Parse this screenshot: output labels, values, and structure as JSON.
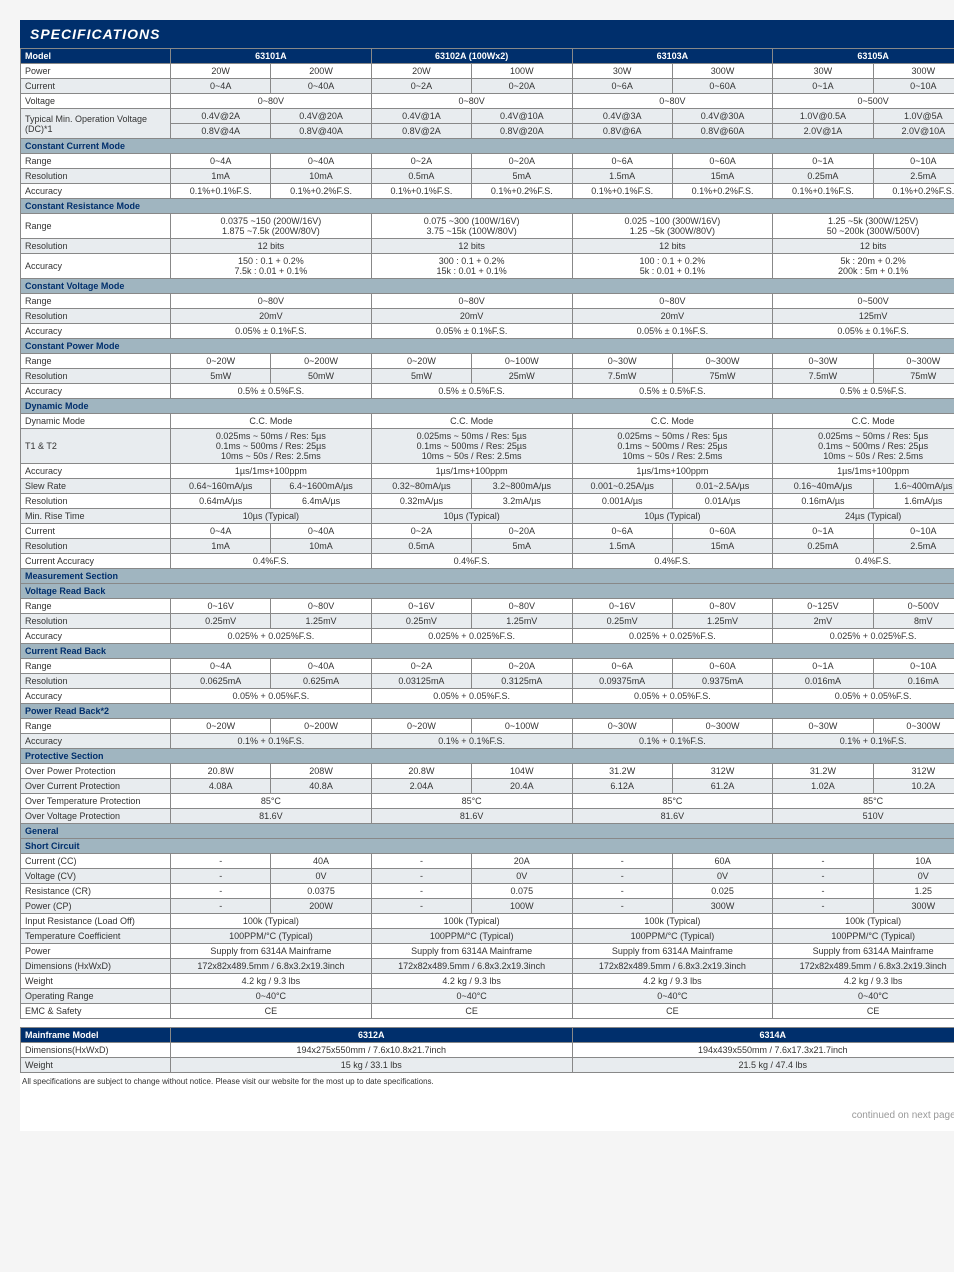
{
  "title": "SPECIFICATIONS",
  "columns": {
    "first_width": 150
  },
  "header": [
    "Model",
    "63101A",
    "63102A (100Wx2)",
    "63103A",
    "63105A"
  ],
  "rows": [
    {
      "type": "data",
      "label": "Power",
      "cells": [
        "20W",
        "200W",
        "20W",
        "100W",
        "30W",
        "300W",
        "30W",
        "300W"
      ]
    },
    {
      "type": "data",
      "label": "Current",
      "cells": [
        "0~4A",
        "0~40A",
        "0~2A",
        "0~20A",
        "0~6A",
        "0~60A",
        "0~1A",
        "0~10A"
      ]
    },
    {
      "type": "data",
      "label": "Voltage",
      "cells": [
        {
          "span": 2,
          "text": "0~80V"
        },
        {
          "span": 2,
          "text": "0~80V"
        },
        {
          "span": 2,
          "text": "0~80V"
        },
        {
          "span": 2,
          "text": "0~500V"
        }
      ]
    },
    {
      "type": "data",
      "label": "Typical Min. Operation Voltage (DC)*1",
      "multi": [
        [
          "0.4V@2A",
          "0.4V@20A",
          "0.4V@1A",
          "0.4V@10A",
          "0.4V@3A",
          "0.4V@30A",
          "1.0V@0.5A",
          "1.0V@5A"
        ],
        [
          "0.8V@4A",
          "0.8V@40A",
          "0.8V@2A",
          "0.8V@20A",
          "0.8V@6A",
          "0.8V@60A",
          "2.0V@1A",
          "2.0V@10A"
        ]
      ]
    },
    {
      "type": "section",
      "label": "Constant Current Mode"
    },
    {
      "type": "data",
      "label": "Range",
      "cells": [
        "0~4A",
        "0~40A",
        "0~2A",
        "0~20A",
        "0~6A",
        "0~60A",
        "0~1A",
        "0~10A"
      ]
    },
    {
      "type": "data",
      "label": "Resolution",
      "cells": [
        "1mA",
        "10mA",
        "0.5mA",
        "5mA",
        "1.5mA",
        "15mA",
        "0.25mA",
        "2.5mA"
      ]
    },
    {
      "type": "data",
      "label": "Accuracy",
      "cells": [
        "0.1%+0.1%F.S.",
        "0.1%+0.2%F.S.",
        "0.1%+0.1%F.S.",
        "0.1%+0.2%F.S.",
        "0.1%+0.1%F.S.",
        "0.1%+0.2%F.S.",
        "0.1%+0.1%F.S.",
        "0.1%+0.2%F.S."
      ]
    },
    {
      "type": "section",
      "label": "Constant Resistance Mode"
    },
    {
      "type": "data",
      "label": "Range",
      "cells": [
        {
          "span": 2,
          "text": "0.0375 ~150 (200W/16V)\n1.875 ~7.5k (200W/80V)"
        },
        {
          "span": 2,
          "text": "0.075 ~300 (100W/16V)\n3.75 ~15k (100W/80V)"
        },
        {
          "span": 2,
          "text": "0.025 ~100 (300W/16V)\n1.25 ~5k (300W/80V)"
        },
        {
          "span": 2,
          "text": "1.25 ~5k (300W/125V)\n50 ~200k (300W/500V)"
        }
      ]
    },
    {
      "type": "data",
      "label": "Resolution",
      "cells": [
        {
          "span": 2,
          "text": "12 bits"
        },
        {
          "span": 2,
          "text": "12 bits"
        },
        {
          "span": 2,
          "text": "12 bits"
        },
        {
          "span": 2,
          "text": "12 bits"
        }
      ]
    },
    {
      "type": "data",
      "label": "Accuracy",
      "cells": [
        {
          "span": 2,
          "text": "150 : 0.1 + 0.2%\n7.5k : 0.01 + 0.1%"
        },
        {
          "span": 2,
          "text": "300 : 0.1 + 0.2%\n15k : 0.01 + 0.1%"
        },
        {
          "span": 2,
          "text": "100 : 0.1 + 0.2%\n5k : 0.01 + 0.1%"
        },
        {
          "span": 2,
          "text": "5k : 20m + 0.2%\n200k : 5m + 0.1%"
        }
      ]
    },
    {
      "type": "section",
      "label": "Constant Voltage Mode"
    },
    {
      "type": "data",
      "label": "Range",
      "cells": [
        {
          "span": 2,
          "text": "0~80V"
        },
        {
          "span": 2,
          "text": "0~80V"
        },
        {
          "span": 2,
          "text": "0~80V"
        },
        {
          "span": 2,
          "text": "0~500V"
        }
      ]
    },
    {
      "type": "data",
      "label": "Resolution",
      "cells": [
        {
          "span": 2,
          "text": "20mV"
        },
        {
          "span": 2,
          "text": "20mV"
        },
        {
          "span": 2,
          "text": "20mV"
        },
        {
          "span": 2,
          "text": "125mV"
        }
      ]
    },
    {
      "type": "data",
      "label": "Accuracy",
      "cells": [
        {
          "span": 2,
          "text": "0.05% ± 0.1%F.S."
        },
        {
          "span": 2,
          "text": "0.05% ± 0.1%F.S."
        },
        {
          "span": 2,
          "text": "0.05% ± 0.1%F.S."
        },
        {
          "span": 2,
          "text": "0.05% ± 0.1%F.S."
        }
      ]
    },
    {
      "type": "section",
      "label": "Constant Power Mode"
    },
    {
      "type": "data",
      "label": "Range",
      "cells": [
        "0~20W",
        "0~200W",
        "0~20W",
        "0~100W",
        "0~30W",
        "0~300W",
        "0~30W",
        "0~300W"
      ]
    },
    {
      "type": "data",
      "label": "Resolution",
      "cells": [
        "5mW",
        "50mW",
        "5mW",
        "25mW",
        "7.5mW",
        "75mW",
        "7.5mW",
        "75mW"
      ]
    },
    {
      "type": "data",
      "label": "Accuracy",
      "cells": [
        {
          "span": 2,
          "text": "0.5% ± 0.5%F.S."
        },
        {
          "span": 2,
          "text": "0.5% ± 0.5%F.S."
        },
        {
          "span": 2,
          "text": "0.5% ± 0.5%F.S."
        },
        {
          "span": 2,
          "text": "0.5% ± 0.5%F.S."
        }
      ]
    },
    {
      "type": "section",
      "label": "Dynamic Mode"
    },
    {
      "type": "data",
      "label": "Dynamic Mode",
      "cells": [
        {
          "span": 2,
          "text": "C.C. Mode"
        },
        {
          "span": 2,
          "text": "C.C. Mode"
        },
        {
          "span": 2,
          "text": "C.C. Mode"
        },
        {
          "span": 2,
          "text": "C.C. Mode"
        }
      ]
    },
    {
      "type": "data",
      "label": "T1 & T2",
      "cells": [
        {
          "span": 2,
          "text": "0.025ms ~ 50ms / Res: 5µs\n0.1ms ~ 500ms / Res: 25µs\n10ms ~ 50s / Res: 2.5ms"
        },
        {
          "span": 2,
          "text": "0.025ms ~ 50ms / Res: 5µs\n0.1ms ~ 500ms / Res: 25µs\n10ms ~ 50s / Res: 2.5ms"
        },
        {
          "span": 2,
          "text": "0.025ms ~ 50ms / Res: 5µs\n0.1ms ~ 500ms / Res: 25µs\n10ms ~ 50s / Res: 2.5ms"
        },
        {
          "span": 2,
          "text": "0.025ms ~ 50ms / Res: 5µs\n0.1ms ~ 500ms / Res: 25µs\n10ms ~ 50s / Res: 2.5ms"
        }
      ]
    },
    {
      "type": "data",
      "label": "Accuracy",
      "cells": [
        {
          "span": 2,
          "text": "1µs/1ms+100ppm"
        },
        {
          "span": 2,
          "text": "1µs/1ms+100ppm"
        },
        {
          "span": 2,
          "text": "1µs/1ms+100ppm"
        },
        {
          "span": 2,
          "text": "1µs/1ms+100ppm"
        }
      ]
    },
    {
      "type": "data",
      "label": "Slew Rate",
      "cells": [
        "0.64~160mA/µs",
        "6.4~1600mA/µs",
        "0.32~80mA/µs",
        "3.2~800mA/µs",
        "0.001~0.25A/µs",
        "0.01~2.5A/µs",
        "0.16~40mA/µs",
        "1.6~400mA/µs"
      ]
    },
    {
      "type": "data",
      "label": "Resolution",
      "cells": [
        "0.64mA/µs",
        "6.4mA/µs",
        "0.32mA/µs",
        "3.2mA/µs",
        "0.001A/µs",
        "0.01A/µs",
        "0.16mA/µs",
        "1.6mA/µs"
      ]
    },
    {
      "type": "data",
      "label": "Min. Rise Time",
      "cells": [
        {
          "span": 2,
          "text": "10µs (Typical)"
        },
        {
          "span": 2,
          "text": "10µs (Typical)"
        },
        {
          "span": 2,
          "text": "10µs (Typical)"
        },
        {
          "span": 2,
          "text": "24µs (Typical)"
        }
      ]
    },
    {
      "type": "data",
      "label": "Current",
      "cells": [
        "0~4A",
        "0~40A",
        "0~2A",
        "0~20A",
        "0~6A",
        "0~60A",
        "0~1A",
        "0~10A"
      ]
    },
    {
      "type": "data",
      "label": "Resolution",
      "cells": [
        "1mA",
        "10mA",
        "0.5mA",
        "5mA",
        "1.5mA",
        "15mA",
        "0.25mA",
        "2.5mA"
      ]
    },
    {
      "type": "data",
      "label": "Current Accuracy",
      "cells": [
        {
          "span": 2,
          "text": "0.4%F.S."
        },
        {
          "span": 2,
          "text": "0.4%F.S."
        },
        {
          "span": 2,
          "text": "0.4%F.S."
        },
        {
          "span": 2,
          "text": "0.4%F.S."
        }
      ]
    },
    {
      "type": "section",
      "label": "Measurement Section"
    },
    {
      "type": "section",
      "label": "Voltage Read Back"
    },
    {
      "type": "data",
      "label": "Range",
      "cells": [
        "0~16V",
        "0~80V",
        "0~16V",
        "0~80V",
        "0~16V",
        "0~80V",
        "0~125V",
        "0~500V"
      ]
    },
    {
      "type": "data",
      "label": "Resolution",
      "cells": [
        "0.25mV",
        "1.25mV",
        "0.25mV",
        "1.25mV",
        "0.25mV",
        "1.25mV",
        "2mV",
        "8mV"
      ]
    },
    {
      "type": "data",
      "label": "Accuracy",
      "cells": [
        {
          "span": 2,
          "text": "0.025% + 0.025%F.S."
        },
        {
          "span": 2,
          "text": "0.025% + 0.025%F.S."
        },
        {
          "span": 2,
          "text": "0.025% + 0.025%F.S."
        },
        {
          "span": 2,
          "text": "0.025% + 0.025%F.S."
        }
      ]
    },
    {
      "type": "section",
      "label": "Current Read Back"
    },
    {
      "type": "data",
      "label": "Range",
      "cells": [
        "0~4A",
        "0~40A",
        "0~2A",
        "0~20A",
        "0~6A",
        "0~60A",
        "0~1A",
        "0~10A"
      ]
    },
    {
      "type": "data",
      "label": "Resolution",
      "cells": [
        "0.0625mA",
        "0.625mA",
        "0.03125mA",
        "0.3125mA",
        "0.09375mA",
        "0.9375mA",
        "0.016mA",
        "0.16mA"
      ]
    },
    {
      "type": "data",
      "label": "Accuracy",
      "cells": [
        {
          "span": 2,
          "text": "0.05% + 0.05%F.S."
        },
        {
          "span": 2,
          "text": "0.05% + 0.05%F.S."
        },
        {
          "span": 2,
          "text": "0.05% + 0.05%F.S."
        },
        {
          "span": 2,
          "text": "0.05% + 0.05%F.S."
        }
      ]
    },
    {
      "type": "section",
      "label": "Power Read Back*2"
    },
    {
      "type": "data",
      "label": "Range",
      "cells": [
        "0~20W",
        "0~200W",
        "0~20W",
        "0~100W",
        "0~30W",
        "0~300W",
        "0~30W",
        "0~300W"
      ]
    },
    {
      "type": "data",
      "label": "Accuracy",
      "cells": [
        {
          "span": 2,
          "text": "0.1% + 0.1%F.S."
        },
        {
          "span": 2,
          "text": "0.1% + 0.1%F.S."
        },
        {
          "span": 2,
          "text": "0.1% + 0.1%F.S."
        },
        {
          "span": 2,
          "text": "0.1% + 0.1%F.S."
        }
      ]
    },
    {
      "type": "section",
      "label": "Protective Section"
    },
    {
      "type": "data",
      "label": "Over Power Protection",
      "cells": [
        "20.8W",
        "208W",
        "20.8W",
        "104W",
        "31.2W",
        "312W",
        "31.2W",
        "312W"
      ]
    },
    {
      "type": "data",
      "label": "Over Current Protection",
      "cells": [
        "4.08A",
        "40.8A",
        "2.04A",
        "20.4A",
        "6.12A",
        "61.2A",
        "1.02A",
        "10.2A"
      ]
    },
    {
      "type": "data",
      "label": "Over Temperature Protection",
      "cells": [
        {
          "span": 2,
          "text": "85°C"
        },
        {
          "span": 2,
          "text": "85°C"
        },
        {
          "span": 2,
          "text": "85°C"
        },
        {
          "span": 2,
          "text": "85°C"
        }
      ]
    },
    {
      "type": "data",
      "label": "Over Voltage Protection",
      "cells": [
        {
          "span": 2,
          "text": "81.6V"
        },
        {
          "span": 2,
          "text": "81.6V"
        },
        {
          "span": 2,
          "text": "81.6V"
        },
        {
          "span": 2,
          "text": "510V"
        }
      ]
    },
    {
      "type": "section",
      "label": "General"
    },
    {
      "type": "section",
      "label": "Short Circuit"
    },
    {
      "type": "data",
      "label": "Current (CC)",
      "cells": [
        "-",
        "40A",
        "-",
        "20A",
        "-",
        "60A",
        "-",
        "10A"
      ]
    },
    {
      "type": "data",
      "label": "Voltage (CV)",
      "cells": [
        "-",
        "0V",
        "-",
        "0V",
        "-",
        "0V",
        "-",
        "0V"
      ]
    },
    {
      "type": "data",
      "label": "Resistance (CR)",
      "cells": [
        "-",
        "0.0375",
        "-",
        "0.075",
        "-",
        "0.025",
        "-",
        "1.25"
      ]
    },
    {
      "type": "data",
      "label": "Power (CP)",
      "cells": [
        "-",
        "200W",
        "-",
        "100W",
        "-",
        "300W",
        "-",
        "300W"
      ]
    },
    {
      "type": "data",
      "label": "Input Resistance (Load Off)",
      "cells": [
        {
          "span": 2,
          "text": "100k (Typical)"
        },
        {
          "span": 2,
          "text": "100k (Typical)"
        },
        {
          "span": 2,
          "text": "100k (Typical)"
        },
        {
          "span": 2,
          "text": "100k (Typical)"
        }
      ]
    },
    {
      "type": "data",
      "label": "Temperature Coefficient",
      "cells": [
        {
          "span": 2,
          "text": "100PPM/°C (Typical)"
        },
        {
          "span": 2,
          "text": "100PPM/°C (Typical)"
        },
        {
          "span": 2,
          "text": "100PPM/°C (Typical)"
        },
        {
          "span": 2,
          "text": "100PPM/°C (Typical)"
        }
      ]
    },
    {
      "type": "data",
      "label": "Power",
      "cells": [
        {
          "span": 2,
          "text": "Supply from 6314A Mainframe"
        },
        {
          "span": 2,
          "text": "Supply from 6314A Mainframe"
        },
        {
          "span": 2,
          "text": "Supply from 6314A Mainframe"
        },
        {
          "span": 2,
          "text": "Supply from 6314A Mainframe"
        }
      ]
    },
    {
      "type": "data",
      "label": "Dimensions (HxWxD)",
      "cells": [
        {
          "span": 2,
          "text": "172x82x489.5mm / 6.8x3.2x19.3inch"
        },
        {
          "span": 2,
          "text": "172x82x489.5mm / 6.8x3.2x19.3inch"
        },
        {
          "span": 2,
          "text": "172x82x489.5mm / 6.8x3.2x19.3inch"
        },
        {
          "span": 2,
          "text": "172x82x489.5mm / 6.8x3.2x19.3inch"
        }
      ]
    },
    {
      "type": "data",
      "label": "Weight",
      "cells": [
        {
          "span": 2,
          "text": "4.2 kg / 9.3 lbs"
        },
        {
          "span": 2,
          "text": "4.2 kg / 9.3 lbs"
        },
        {
          "span": 2,
          "text": "4.2 kg / 9.3 lbs"
        },
        {
          "span": 2,
          "text": "4.2 kg / 9.3 lbs"
        }
      ]
    },
    {
      "type": "data",
      "label": "Operating Range",
      "cells": [
        {
          "span": 2,
          "text": "0~40°C"
        },
        {
          "span": 2,
          "text": "0~40°C"
        },
        {
          "span": 2,
          "text": "0~40°C"
        },
        {
          "span": 2,
          "text": "0~40°C"
        }
      ]
    },
    {
      "type": "data",
      "label": "EMC & Safety",
      "cells": [
        {
          "span": 2,
          "text": "CE"
        },
        {
          "span": 2,
          "text": "CE"
        },
        {
          "span": 2,
          "text": "CE"
        },
        {
          "span": 2,
          "text": "CE"
        }
      ]
    }
  ],
  "mainframe": {
    "header": [
      "Mainframe Model",
      "6312A",
      "6314A"
    ],
    "rows": [
      {
        "label": "Dimensions(HxWxD)",
        "cells": [
          "194x275x550mm / 7.6x10.8x21.7inch",
          "194x439x550mm / 7.6x17.3x21.7inch"
        ]
      },
      {
        "label": "Weight",
        "cells": [
          "15 kg / 33.1 lbs",
          "21.5 kg / 47.4 lbs"
        ]
      }
    ]
  },
  "footnote": "All specifications are subject to change without notice. Please visit our website for the most up to date specifications.",
  "continued": "continued on next page...",
  "colors": {
    "header_bg": "#002f6c",
    "section_bg": "#a0b5c0",
    "alt_row": "#e8ecef"
  }
}
